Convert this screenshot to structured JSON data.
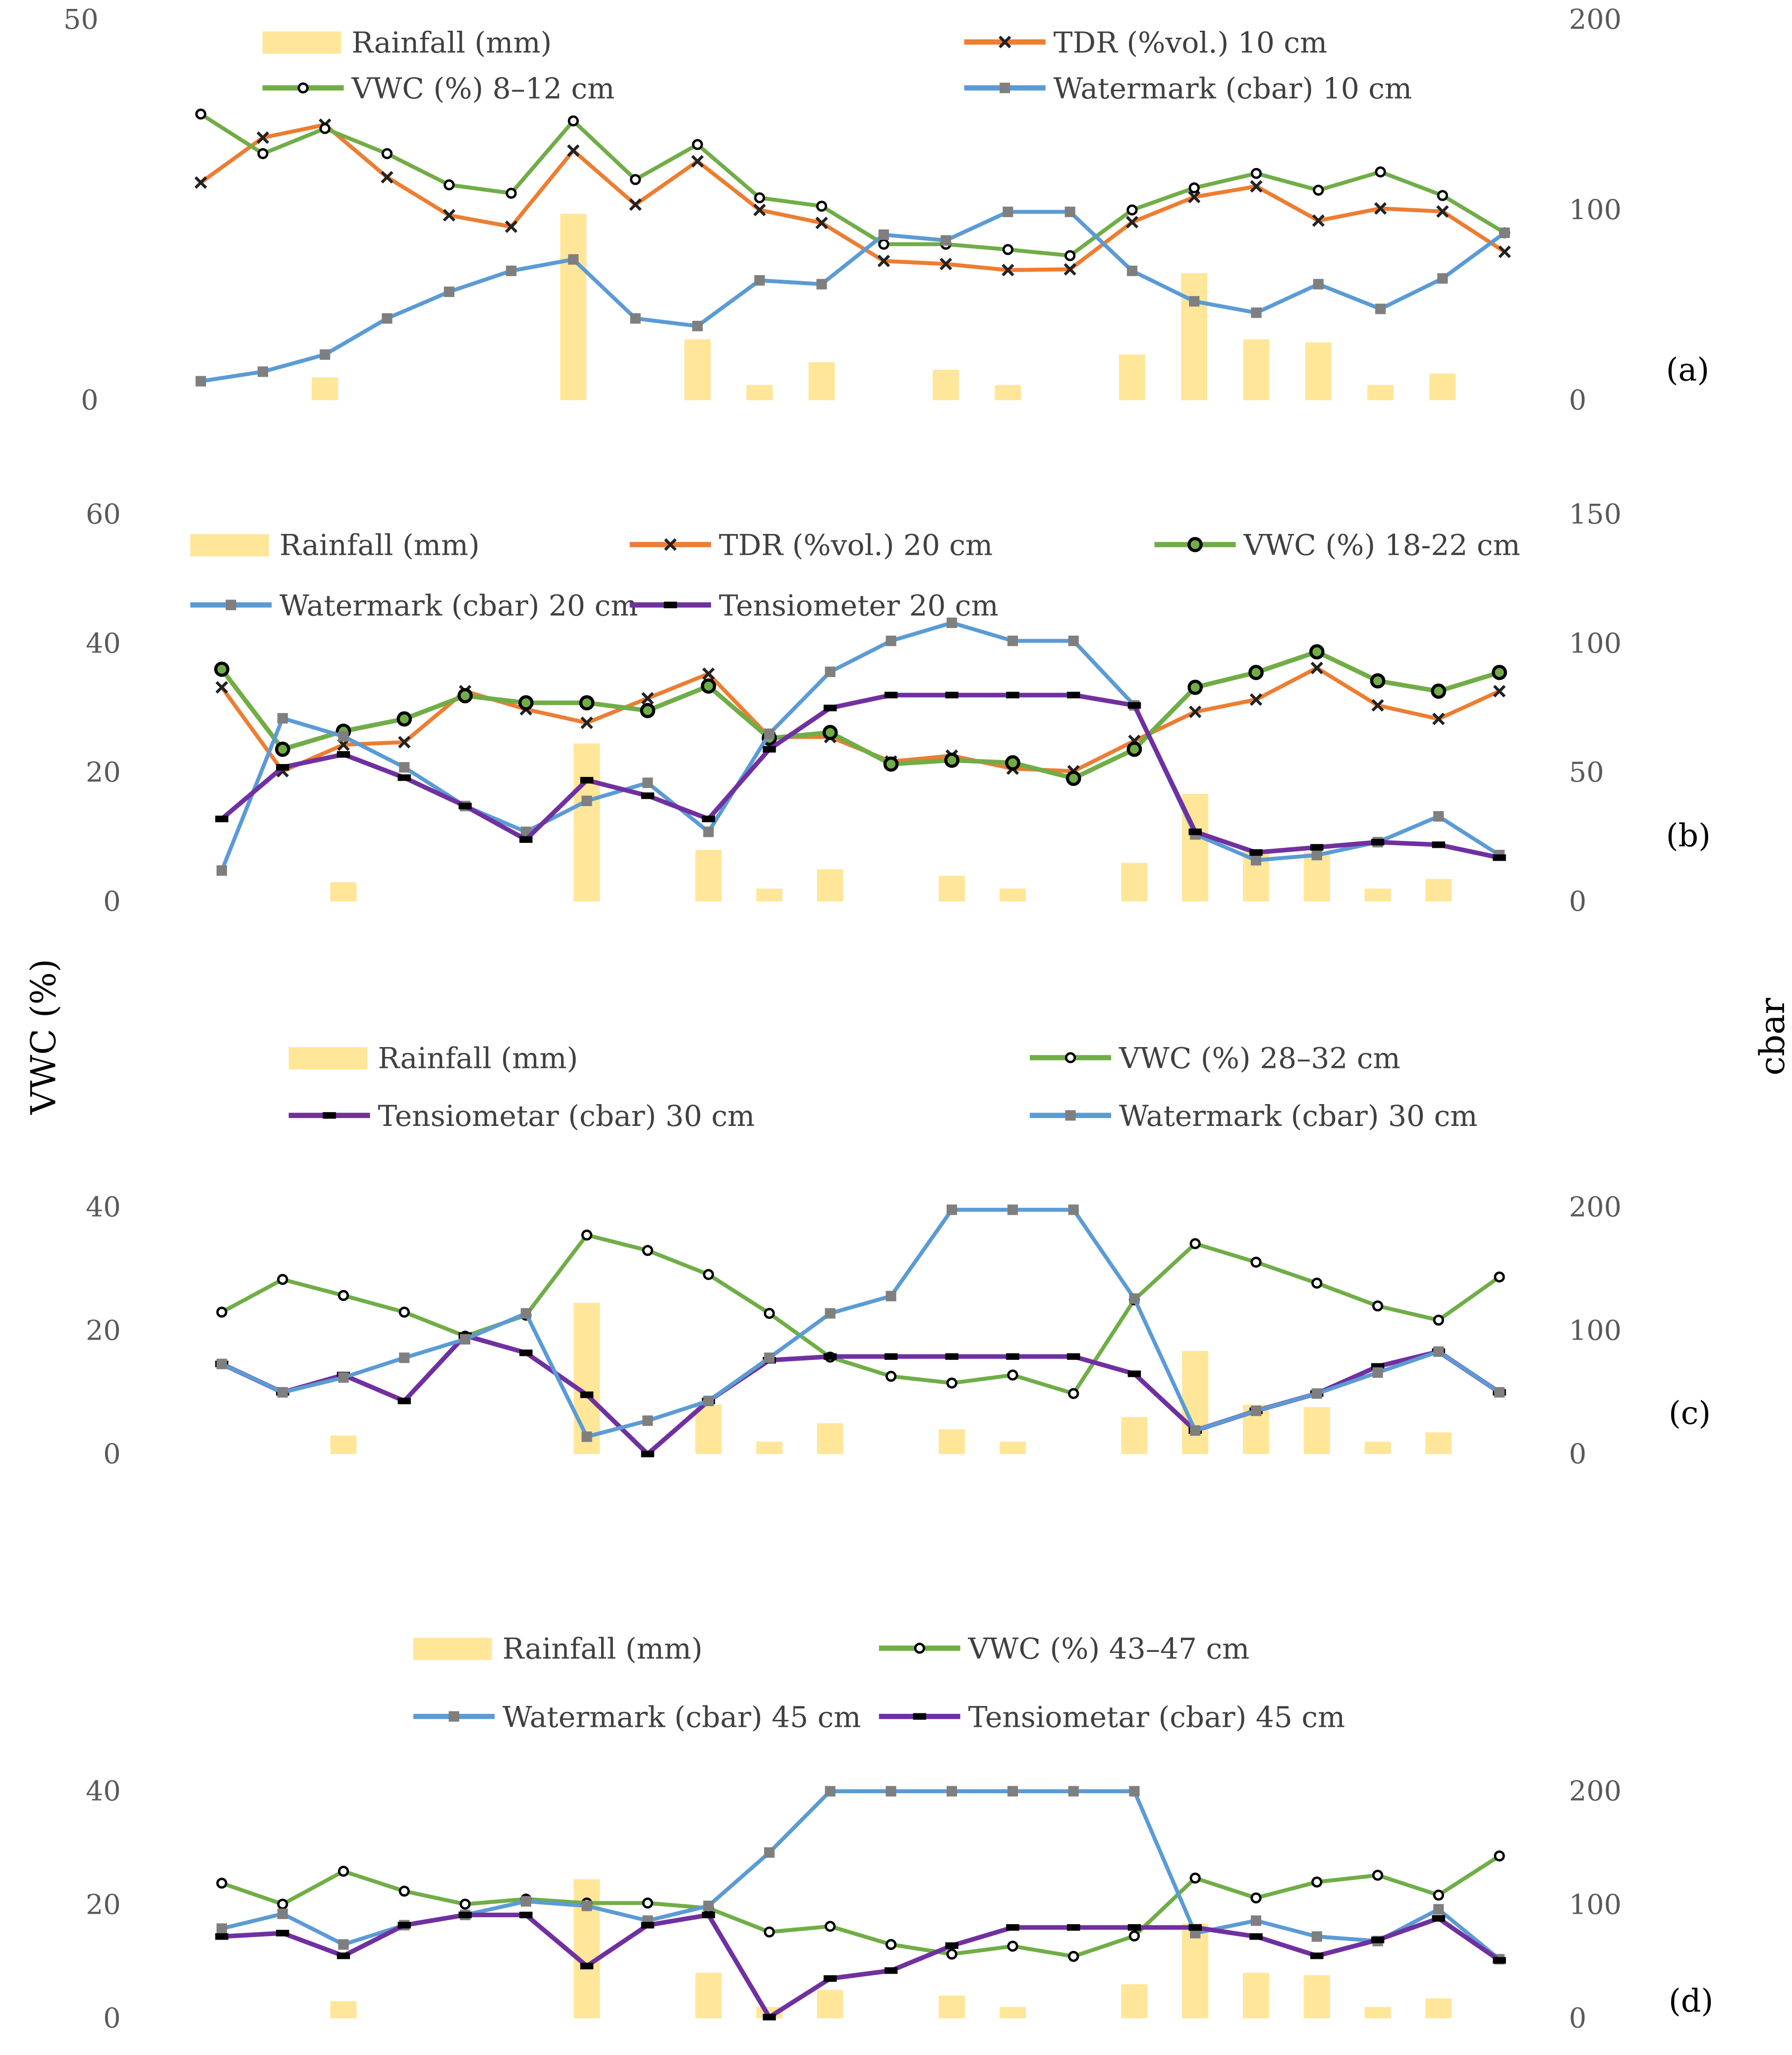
{
  "colors": {
    "rainfall": "#FFE699",
    "tdr": "#ED7D31",
    "vwc": "#70AD47",
    "watermark": "#5B9BD5",
    "tensiometer": "#7030A0",
    "marker_watermark": "#7F7F7F",
    "marker_dark": "#000000"
  },
  "axis_titles": {
    "left": "VWC (%)",
    "right": "cbar"
  },
  "chart_data": [
    {
      "type": "bar+line",
      "panel_label": "(a)",
      "ylim_left": [
        0,
        50
      ],
      "yticks_left": [
        "0",
        "50"
      ],
      "ylim_right": [
        0,
        200
      ],
      "yticks_right": [
        "0",
        "100",
        "200"
      ],
      "series": [
        {
          "key": "rainfall",
          "name": "Rainfall (mm)",
          "kind": "bar",
          "axis": "left",
          "values": [
            0,
            0,
            3,
            0,
            0,
            0,
            24.5,
            0,
            8,
            2,
            5,
            0,
            4,
            2,
            0,
            6,
            16.7,
            8,
            7.6,
            2,
            3.5,
            0
          ]
        },
        {
          "key": "tdr",
          "name": "TDR (%vol.) 10 cm",
          "kind": "line",
          "marker": "x",
          "axis": "left",
          "values": [
            28.6,
            34.5,
            36.2,
            29.3,
            24.3,
            22.8,
            32.8,
            25.7,
            31.4,
            25,
            23.3,
            18.3,
            17.9,
            17.1,
            17.2,
            23.4,
            26.7,
            28.1,
            23.6,
            25.2,
            24.8,
            19.5
          ]
        },
        {
          "key": "vwc",
          "name": "VWC  (%) 8–12 cm",
          "kind": "line",
          "marker": "circle",
          "axis": "left",
          "values": [
            37.6,
            32.4,
            35.7,
            32.4,
            28.3,
            27.2,
            36.7,
            29,
            33.6,
            26.6,
            25.5,
            20.5,
            20.5,
            19.8,
            19,
            25,
            27.9,
            29.8,
            27.6,
            30,
            26.9,
            22
          ]
        },
        {
          "key": "watermark",
          "name": "Watermark (cbar) 10  cm",
          "kind": "line",
          "marker": "square",
          "axis": "right",
          "values": [
            10,
            15,
            24,
            43,
            57,
            68,
            74,
            43,
            39,
            63,
            61,
            87,
            84,
            99,
            99,
            68,
            52,
            46,
            61,
            48,
            64,
            88
          ]
        }
      ]
    },
    {
      "type": "bar+line",
      "panel_label": "(b)",
      "ylim_left": [
        0,
        60
      ],
      "yticks_left": [
        "0",
        "20",
        "40",
        "60"
      ],
      "ylim_right": [
        0,
        150
      ],
      "yticks_right": [
        "0",
        "50",
        "100",
        "150"
      ],
      "series": [
        {
          "key": "rainfall",
          "name": "Rainfall (mm)",
          "kind": "bar",
          "axis": "left",
          "values": [
            0,
            0,
            3,
            0,
            0,
            0,
            24.5,
            0,
            8,
            2,
            5,
            0,
            4,
            2,
            0,
            6,
            16.7,
            8,
            7.6,
            2,
            3.5,
            0
          ]
        },
        {
          "key": "tdr",
          "name": "TDR (%vol.) 20 cm",
          "kind": "line",
          "marker": "x",
          "axis": "left",
          "values": [
            33.2,
            20.2,
            24.3,
            24.7,
            32.6,
            29.8,
            27.7,
            31.5,
            35.3,
            25.5,
            25.5,
            21.7,
            22.6,
            20.6,
            20.2,
            24.9,
            29.4,
            31.3,
            36.2,
            30.4,
            28.3,
            32.6
          ]
        },
        {
          "key": "vwc",
          "name": "VWC  (%) 18-22 cm",
          "kind": "line",
          "marker": "circle-bold",
          "axis": "left",
          "values": [
            36,
            23.6,
            26.4,
            28.3,
            31.9,
            30.8,
            30.8,
            29.6,
            33.4,
            25.3,
            26.2,
            21.3,
            21.9,
            21.5,
            19.1,
            23.6,
            33.2,
            35.5,
            38.7,
            34.2,
            32.6,
            35.5
          ]
        },
        {
          "key": "watermark",
          "name": "Watermark (cbar) 20 cm",
          "kind": "line",
          "marker": "square",
          "axis": "right",
          "values": [
            12,
            71,
            64,
            52,
            37,
            27,
            39,
            46,
            27,
            65,
            89,
            101,
            108,
            101,
            101,
            76,
            26,
            16,
            18,
            23,
            33,
            18
          ]
        },
        {
          "key": "tensiometer",
          "name": "Tensiometer 20 cm",
          "kind": "line",
          "marker": "dash",
          "axis": "right",
          "values": [
            32,
            52,
            57,
            48,
            37,
            24,
            47,
            41,
            32,
            59,
            75,
            80,
            80,
            80,
            80,
            76,
            27,
            19,
            21,
            23,
            22,
            17
          ]
        }
      ]
    },
    {
      "type": "bar+line",
      "panel_label": "(c)",
      "ylim_left": [
        0,
        40
      ],
      "yticks_left": [
        "0",
        "20",
        "40"
      ],
      "ylim_right": [
        0,
        200
      ],
      "yticks_right": [
        "0",
        "100",
        "200"
      ],
      "series": [
        {
          "key": "rainfall",
          "name": "Rainfall (mm)",
          "kind": "bar",
          "axis": "left",
          "values": [
            0,
            0,
            3,
            0,
            0,
            0,
            24.5,
            0,
            8,
            2,
            5,
            0,
            4,
            2,
            0,
            6,
            16.7,
            8,
            7.6,
            2,
            3.5,
            0
          ]
        },
        {
          "key": "vwc",
          "name": "VWC  (%) 28–32 cm",
          "kind": "line",
          "marker": "circle",
          "axis": "left",
          "values": [
            23,
            28.3,
            25.7,
            23,
            19.1,
            22.5,
            35.5,
            33,
            29.1,
            22.8,
            15.7,
            12.6,
            11.5,
            12.8,
            9.8,
            25,
            34.1,
            31.1,
            27.7,
            24,
            21.7,
            28.7
          ]
        },
        {
          "key": "tensiometer",
          "name": "Tensiometar (cbar) 30 cm",
          "kind": "line",
          "marker": "dash",
          "axis": "right",
          "values": [
            73,
            50,
            64,
            43,
            96,
            82,
            48,
            0,
            43,
            76,
            79,
            79,
            79,
            79,
            79,
            65,
            19,
            35,
            49,
            71,
            83,
            50
          ]
        },
        {
          "key": "watermark",
          "name": "Watermark (cbar) 30 cm",
          "kind": "line",
          "marker": "square",
          "axis": "right",
          "values": [
            73,
            50,
            62,
            78,
            93,
            114,
            14,
            27,
            43,
            78,
            114,
            128,
            198,
            198,
            198,
            126,
            19,
            35,
            49,
            66,
            83,
            50
          ]
        }
      ]
    },
    {
      "type": "bar+line",
      "panel_label": "(d)",
      "ylim_left": [
        0,
        40
      ],
      "yticks_left": [
        "0",
        "20",
        "40"
      ],
      "ylim_right": [
        0,
        200
      ],
      "yticks_right": [
        "0",
        "100",
        "200"
      ],
      "series": [
        {
          "key": "rainfall",
          "name": "Rainfall (mm)",
          "kind": "bar",
          "axis": "left",
          "values": [
            0,
            0,
            3,
            0,
            0,
            0,
            24.5,
            0,
            8,
            2,
            5,
            0,
            4,
            2,
            0,
            6,
            16.7,
            8,
            7.6,
            2,
            3.5,
            0
          ]
        },
        {
          "key": "vwc",
          "name": "VWC  (%) 43–47 cm",
          "kind": "line",
          "marker": "circle",
          "axis": "left",
          "values": [
            23.8,
            20.1,
            25.9,
            22.4,
            20.1,
            21,
            20.3,
            20.3,
            19.4,
            15.2,
            16.2,
            13,
            11.3,
            12.7,
            10.9,
            14.5,
            24.7,
            21.2,
            24,
            25.2,
            21.7,
            28.6
          ]
        },
        {
          "key": "watermark",
          "name": "Watermark (cbar) 45 cm",
          "kind": "line",
          "marker": "square",
          "axis": "right",
          "values": [
            79,
            92,
            65,
            82,
            91,
            103,
            99,
            86,
            99,
            146,
            200,
            200,
            200,
            200,
            200,
            200,
            75,
            86,
            72,
            68,
            96,
            52
          ]
        },
        {
          "key": "tensiometer",
          "name": "Tensiometar (cbar) 45 cm",
          "kind": "line",
          "marker": "dash",
          "axis": "right",
          "values": [
            72,
            75,
            55,
            82,
            91,
            91,
            46,
            82,
            91,
            1,
            35,
            42,
            64,
            80,
            80,
            80,
            80,
            72,
            55,
            69,
            88,
            51
          ]
        }
      ]
    }
  ]
}
